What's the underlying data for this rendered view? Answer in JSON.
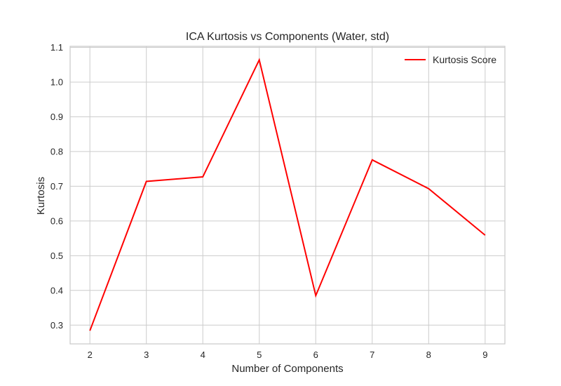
{
  "chart_data": {
    "type": "line",
    "title": "ICA Kurtosis vs Components (Water, std)",
    "xlabel": "Number of Components",
    "ylabel": "Kurtosis",
    "x": [
      2,
      3,
      4,
      5,
      6,
      7,
      8,
      9
    ],
    "series": [
      {
        "name": "Kurtosis Score",
        "color": "#ff0000",
        "values": [
          0.284,
          0.714,
          0.727,
          1.064,
          0.385,
          0.776,
          0.693,
          0.559
        ]
      }
    ],
    "xlim": [
      1.65,
      9.35
    ],
    "ylim": [
      0.246,
      1.103
    ],
    "xticks": [
      "2",
      "3",
      "4",
      "5",
      "6",
      "7",
      "8",
      "9"
    ],
    "yticks": [
      "0.3",
      "0.4",
      "0.5",
      "0.6",
      "0.7",
      "0.8",
      "0.9",
      "1.0",
      "1.1"
    ],
    "ytick_values": [
      0.3,
      0.4,
      0.5,
      0.6,
      0.7,
      0.8,
      0.9,
      1.0,
      1.1
    ],
    "grid": true,
    "legend_position": "top-right",
    "grid_color": "#cccccc",
    "axes_edge_color": "#cccccc"
  }
}
